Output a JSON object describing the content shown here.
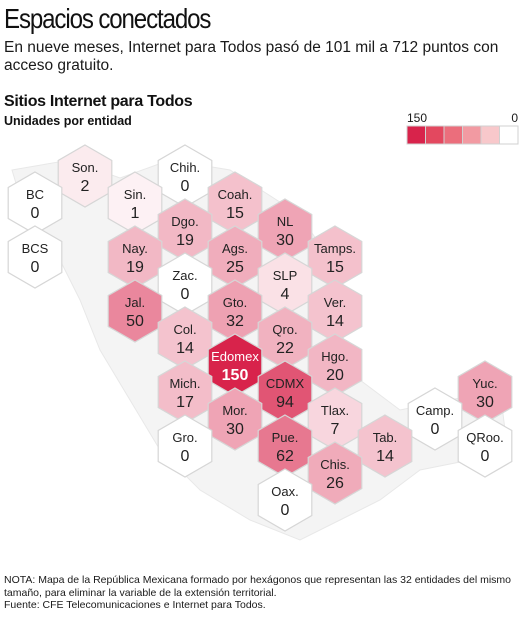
{
  "header": {
    "headline": "Espacios conectados",
    "deck": "En nueve meses, Internet para Todos pasó de 101 mil a 712 puntos con acceso gratuito."
  },
  "chart_data": {
    "type": "heatmap",
    "title": "Sitios Internet para Todos",
    "subtitle": "Unidades por entidad",
    "legend": {
      "max_label": "150",
      "min_label": "0",
      "colors": [
        "#d8234b",
        "#e3485f",
        "#eb6e7c",
        "#f29aa2",
        "#f8c8cb",
        "#ffffff"
      ]
    },
    "color_scale": {
      "min": 0,
      "max": 150
    },
    "states": [
      {
        "name": "Son.",
        "value": 2
      },
      {
        "name": "Chih.",
        "value": 0
      },
      {
        "name": "BC",
        "value": 0
      },
      {
        "name": "Sin.",
        "value": 1
      },
      {
        "name": "Coah.",
        "value": 15
      },
      {
        "name": "Dgo.",
        "value": 19
      },
      {
        "name": "NL",
        "value": 30
      },
      {
        "name": "BCS",
        "value": 0
      },
      {
        "name": "Nay.",
        "value": 19
      },
      {
        "name": "Ags.",
        "value": 25
      },
      {
        "name": "Tamps.",
        "value": 15
      },
      {
        "name": "Zac.",
        "value": 0
      },
      {
        "name": "SLP",
        "value": 4
      },
      {
        "name": "Jal.",
        "value": 50
      },
      {
        "name": "Gto.",
        "value": 32
      },
      {
        "name": "Ver.",
        "value": 14
      },
      {
        "name": "Col.",
        "value": 14
      },
      {
        "name": "Qro.",
        "value": 22
      },
      {
        "name": "Edomex",
        "value": 150
      },
      {
        "name": "Hgo.",
        "value": 20
      },
      {
        "name": "Mich.",
        "value": 17
      },
      {
        "name": "CDMX",
        "value": 94
      },
      {
        "name": "Yuc.",
        "value": 30
      },
      {
        "name": "Mor.",
        "value": 30
      },
      {
        "name": "Tlax.",
        "value": 7
      },
      {
        "name": "Camp.",
        "value": 0
      },
      {
        "name": "Tab.",
        "value": 14
      },
      {
        "name": "Gro.",
        "value": 0
      },
      {
        "name": "Pue.",
        "value": 62
      },
      {
        "name": "QRoo.",
        "value": 0
      },
      {
        "name": "Chis.",
        "value": 26
      },
      {
        "name": "Oax.",
        "value": 0
      }
    ]
  },
  "footer": {
    "note": "NOTA: Mapa de la República Mexicana formado por hexágonos que representan las 32 entidades del mismo tamaño, para eliminar la variable de la extensión territorial.",
    "source": "Fuente: CFE Telecomunicaciones e Internet para Todos."
  }
}
